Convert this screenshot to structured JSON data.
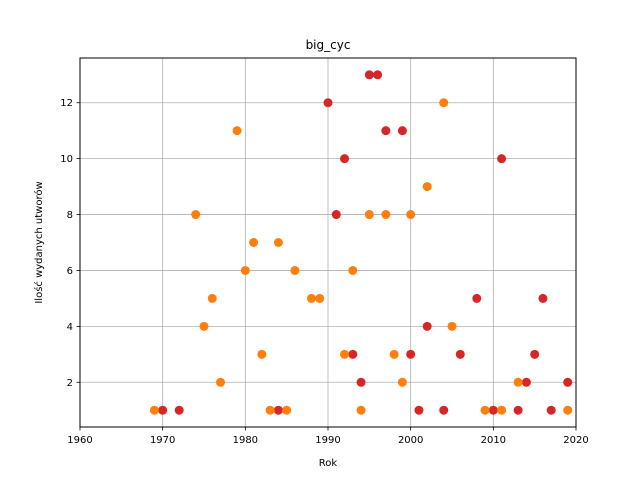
{
  "chart_data": {
    "type": "scatter",
    "title": "big_cyc",
    "xlabel": "Rok",
    "ylabel": "Ilość wydanych utworów",
    "xlim": [
      1960,
      2020
    ],
    "ylim": [
      0.4,
      13.6
    ],
    "xticks": [
      1960,
      1970,
      1980,
      1990,
      2000,
      2010,
      2020
    ],
    "yticks": [
      2,
      4,
      6,
      8,
      10,
      12
    ],
    "grid": true,
    "series": [
      {
        "color": "#d62728",
        "points": [
          [
            1970,
            1
          ],
          [
            1972,
            1
          ],
          [
            1984,
            1
          ],
          [
            1990,
            12
          ],
          [
            1991,
            8
          ],
          [
            1992,
            10
          ],
          [
            1993,
            3
          ],
          [
            1994,
            2
          ],
          [
            1995,
            13
          ],
          [
            1996,
            13
          ],
          [
            1997,
            11
          ],
          [
            1999,
            11
          ],
          [
            2000,
            3
          ],
          [
            2001,
            1
          ],
          [
            2002,
            4
          ],
          [
            2004,
            1
          ],
          [
            2006,
            3
          ],
          [
            2008,
            5
          ],
          [
            2010,
            1
          ],
          [
            2011,
            10
          ],
          [
            2013,
            1
          ],
          [
            2014,
            2
          ],
          [
            2015,
            3
          ],
          [
            2016,
            5
          ],
          [
            2017,
            1
          ],
          [
            2019,
            2
          ]
        ]
      },
      {
        "color": "#ff7f0e",
        "points": [
          [
            1969,
            1
          ],
          [
            1974,
            8
          ],
          [
            1975,
            4
          ],
          [
            1976,
            5
          ],
          [
            1977,
            2
          ],
          [
            1979,
            11
          ],
          [
            1980,
            6
          ],
          [
            1981,
            7
          ],
          [
            1982,
            3
          ],
          [
            1983,
            1
          ],
          [
            1984,
            7
          ],
          [
            1985,
            1
          ],
          [
            1986,
            6
          ],
          [
            1988,
            5
          ],
          [
            1989,
            5
          ],
          [
            1992,
            3
          ],
          [
            1993,
            6
          ],
          [
            1994,
            1
          ],
          [
            1995,
            8
          ],
          [
            1997,
            8
          ],
          [
            1998,
            3
          ],
          [
            1999,
            2
          ],
          [
            2000,
            8
          ],
          [
            2002,
            9
          ],
          [
            2004,
            12
          ],
          [
            2005,
            4
          ],
          [
            2009,
            1
          ],
          [
            2011,
            1
          ],
          [
            2013,
            2
          ],
          [
            2019,
            1
          ]
        ]
      }
    ]
  }
}
